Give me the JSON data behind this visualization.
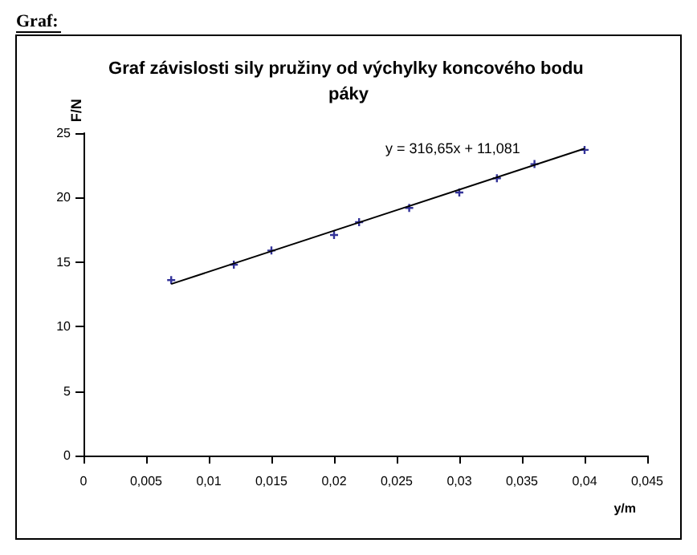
{
  "chart_data": {
    "type": "scatter",
    "title": "Graf závislosti sily pružiny od výchylky koncového bodu páky",
    "xlabel": "y/m",
    "ylabel": "F/N",
    "annotations": [
      "Graf:",
      "y = 316,65x + 11,081"
    ],
    "series": [
      {
        "marker": "cross",
        "color": "#000080",
        "x": [
          0.007,
          0.012,
          0.015,
          0.02,
          0.022,
          0.026,
          0.03,
          0.033,
          0.036,
          0.04
        ],
        "values": [
          13.6,
          14.8,
          15.9,
          17.1,
          18.1,
          19.2,
          20.4,
          21.5,
          22.6,
          23.7
        ]
      },
      {
        "type": "line",
        "marker": "none",
        "color": "#000000",
        "x": [
          0.007,
          0.04
        ],
        "values": [
          13.3,
          23.8
        ]
      }
    ],
    "grid": false,
    "xlim": [
      0,
      0.045
    ],
    "xticks": [
      0,
      {
        "value": 0.005,
        "label": "0,005"
      },
      {
        "value": 0.01,
        "label": "0,01"
      },
      {
        "value": 0.015,
        "label": "0,015"
      },
      {
        "value": 0.02,
        "label": "0,02"
      },
      {
        "value": 0.025,
        "label": "0,025"
      },
      {
        "value": 0.03,
        "label": "0,03"
      },
      {
        "value": 0.035,
        "label": "0,035"
      },
      {
        "value": 0.04,
        "label": "0,04"
      },
      {
        "value": 0.045,
        "label": "0,045"
      }
    ],
    "ylim": [
      0,
      25
    ],
    "yticks": [
      0,
      5,
      10,
      15,
      20,
      25
    ]
  }
}
